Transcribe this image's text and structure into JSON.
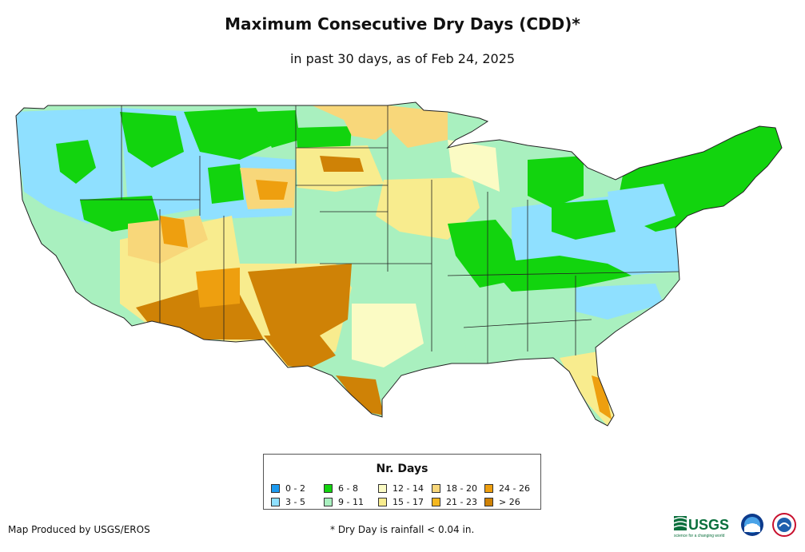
{
  "title": "Maximum Consecutive Dry Days (CDD)*",
  "subtitle": "in past 30 days, as of Feb 24, 2025",
  "legend": {
    "title": "Nr. Days",
    "items": [
      {
        "label": "0 - 2",
        "color": "#1b9af0"
      },
      {
        "label": "3 - 5",
        "color": "#8fe0ff"
      },
      {
        "label": "6 - 8",
        "color": "#12d40e"
      },
      {
        "label": "9 - 11",
        "color": "#a9f0bf"
      },
      {
        "label": "12 - 14",
        "color": "#fbfbc4"
      },
      {
        "label": "15 - 17",
        "color": "#f8ec8e"
      },
      {
        "label": "18 - 20",
        "color": "#f8d77a"
      },
      {
        "label": "21 - 23",
        "color": "#f4b71f"
      },
      {
        "label": "24 - 26",
        "color": "#ee9f0f"
      },
      {
        "label": "> 26",
        "color": "#cf8206"
      }
    ]
  },
  "credit": "Map Produced by USGS/EROS",
  "footnote": "* Dry Day is rainfall < 0.04 in.",
  "logos": {
    "usgs_text": "USGS",
    "usgs_tagline": "science for a changing world",
    "noaa_text": "NOAA"
  }
}
